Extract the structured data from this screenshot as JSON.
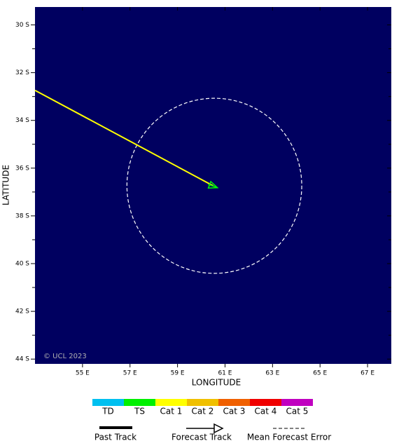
{
  "chart_data": {
    "type": "track_map",
    "xlabel": "LONGITUDE",
    "ylabel": "LATITUDE",
    "copyright": "© UCL 2023",
    "background": "#000060",
    "xlim": [
      53,
      68
    ],
    "ylim": [
      -44.2,
      -29.25
    ],
    "xticks": [
      {
        "value": 55,
        "label": "55 E"
      },
      {
        "value": 57,
        "label": "57 E"
      },
      {
        "value": 59,
        "label": "59 E"
      },
      {
        "value": 61,
        "label": "61 E"
      },
      {
        "value": 63,
        "label": "63 E"
      },
      {
        "value": 65,
        "label": "65 E"
      },
      {
        "value": 67,
        "label": "67 E"
      }
    ],
    "yticks": [
      {
        "value": -30,
        "label": "30 S"
      },
      {
        "value": -32,
        "label": "32 S"
      },
      {
        "value": -34,
        "label": "34 S"
      },
      {
        "value": -36,
        "label": "36 S"
      },
      {
        "value": -38,
        "label": "38 S"
      },
      {
        "value": -40,
        "label": "40 S"
      },
      {
        "value": -42,
        "label": "42 S"
      },
      {
        "value": -44,
        "label": "44 S"
      }
    ],
    "track": {
      "color": "#ffff00",
      "lon": [
        53,
        60.5
      ],
      "lat": [
        -32.74,
        -36.74
      ]
    },
    "forecast": {
      "color": "#00ff00",
      "lon": [
        60.3,
        60.68
      ],
      "lat": [
        -36.68,
        -36.82
      ]
    },
    "error_circle": {
      "center_lon": 60.55,
      "center_lat": -36.74,
      "radius": 3.68
    },
    "intensity_scale": [
      {
        "name": "TD",
        "color": "#00c0f0"
      },
      {
        "name": "TS",
        "color": "#00f000"
      },
      {
        "name": "Cat 1",
        "color": "#ffff00"
      },
      {
        "name": "Cat 2",
        "color": "#f0c000"
      },
      {
        "name": "Cat 3",
        "color": "#f06000"
      },
      {
        "name": "Cat 4",
        "color": "#f00000"
      },
      {
        "name": "Cat 5",
        "color": "#c000c0"
      }
    ],
    "track_legend": [
      "Past Track",
      "Forecast Track",
      "Mean Forecast Error"
    ]
  }
}
